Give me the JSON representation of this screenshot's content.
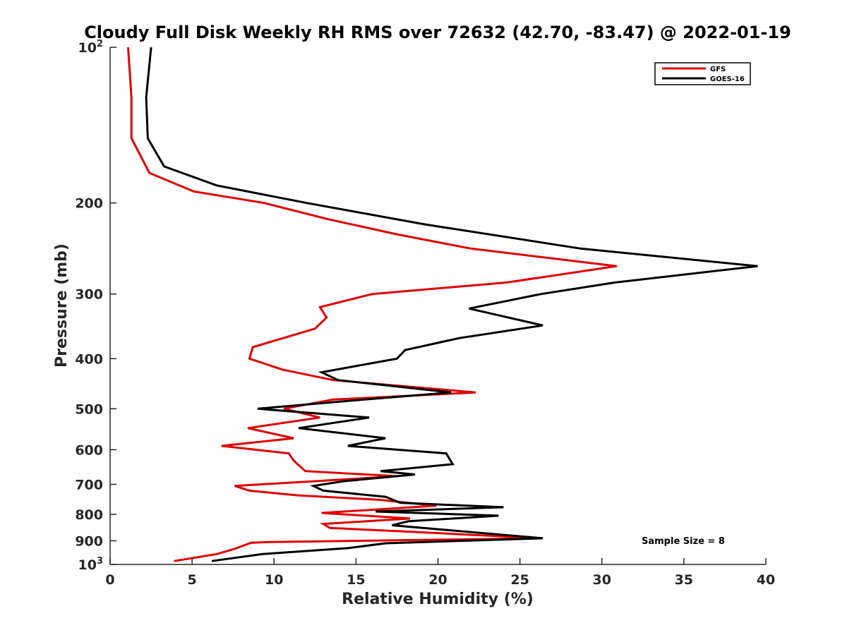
{
  "chart_data": {
    "type": "line",
    "title": "Cloudy Full Disk Weekly RH RMS over 72632 (42.70, -83.47) @ 2022-01-19",
    "xlabel": "Relative Humidity (%)",
    "ylabel": "Pressure (mb)",
    "xlim": [
      0,
      40
    ],
    "ylim": [
      100,
      1000
    ],
    "y_scale": "log",
    "y_direction": "reversed",
    "x_ticks": [
      "0",
      "5",
      "10",
      "15",
      "20",
      "25",
      "30",
      "35",
      "40"
    ],
    "y_ticks": [
      {
        "value": 100,
        "base": "10",
        "exp": "2"
      },
      {
        "value": 200,
        "label": "200"
      },
      {
        "value": 300,
        "label": "300"
      },
      {
        "value": 400,
        "label": "400"
      },
      {
        "value": 500,
        "label": "500"
      },
      {
        "value": 600,
        "label": "600"
      },
      {
        "value": 700,
        "label": "700"
      },
      {
        "value": 800,
        "label": "800"
      },
      {
        "value": 900,
        "label": "900"
      },
      {
        "value": 1000,
        "base": "10",
        "exp": "3"
      }
    ],
    "grid": false,
    "legend_position": "top-right",
    "annotation": "Sample Size = 8",
    "series": [
      {
        "name": "GFS",
        "color": "#e00000",
        "points": [
          [
            1.1,
            100
          ],
          [
            1.3,
            125
          ],
          [
            1.3,
            150
          ],
          [
            2.4,
            175
          ],
          [
            5.1,
            190
          ],
          [
            9.4,
            200
          ],
          [
            13.3,
            215
          ],
          [
            17.5,
            230
          ],
          [
            22.0,
            245
          ],
          [
            30.9,
            265
          ],
          [
            24.2,
            285
          ],
          [
            16.0,
            300
          ],
          [
            12.8,
            318
          ],
          [
            13.2,
            333
          ],
          [
            12.5,
            350
          ],
          [
            8.7,
            380
          ],
          [
            8.5,
            400
          ],
          [
            10.5,
            420
          ],
          [
            13.6,
            440
          ],
          [
            22.3,
            465
          ],
          [
            13.6,
            480
          ],
          [
            10.6,
            500
          ],
          [
            12.8,
            520
          ],
          [
            8.4,
            545
          ],
          [
            11.2,
            570
          ],
          [
            6.8,
            590
          ],
          [
            10.9,
            610
          ],
          [
            11.2,
            630
          ],
          [
            11.9,
            660
          ],
          [
            17.5,
            675
          ],
          [
            12.6,
            690
          ],
          [
            7.6,
            705
          ],
          [
            8.5,
            720
          ],
          [
            11.4,
            735
          ],
          [
            16.4,
            750
          ],
          [
            19.9,
            770
          ],
          [
            12.9,
            795
          ],
          [
            18.3,
            815
          ],
          [
            13.0,
            835
          ],
          [
            13.4,
            850
          ],
          [
            18.4,
            865
          ],
          [
            26.3,
            890
          ],
          [
            9.7,
            905
          ],
          [
            8.6,
            908
          ],
          [
            7.5,
            935
          ],
          [
            6.5,
            955
          ],
          [
            3.9,
            985
          ]
        ]
      },
      {
        "name": "GOES-16",
        "color": "#000000",
        "points": [
          [
            2.5,
            100
          ],
          [
            2.2,
            125
          ],
          [
            2.3,
            150
          ],
          [
            3.3,
            170
          ],
          [
            6.5,
            185
          ],
          [
            12.0,
            200
          ],
          [
            19.2,
            220
          ],
          [
            28.7,
            245
          ],
          [
            39.5,
            265
          ],
          [
            30.8,
            285
          ],
          [
            26.3,
            300
          ],
          [
            21.9,
            320
          ],
          [
            26.4,
            345
          ],
          [
            21.3,
            365
          ],
          [
            18.0,
            385
          ],
          [
            17.5,
            400
          ],
          [
            12.9,
            425
          ],
          [
            13.9,
            440
          ],
          [
            20.8,
            465
          ],
          [
            15.5,
            480
          ],
          [
            9.0,
            500
          ],
          [
            15.8,
            520
          ],
          [
            11.5,
            545
          ],
          [
            16.8,
            570
          ],
          [
            14.5,
            590
          ],
          [
            20.5,
            610
          ],
          [
            20.9,
            640
          ],
          [
            16.5,
            660
          ],
          [
            18.6,
            670
          ],
          [
            14.3,
            690
          ],
          [
            12.4,
            705
          ],
          [
            13.0,
            720
          ],
          [
            16.8,
            740
          ],
          [
            17.7,
            760
          ],
          [
            24.0,
            775
          ],
          [
            16.2,
            790
          ],
          [
            23.7,
            805
          ],
          [
            18.2,
            825
          ],
          [
            17.2,
            840
          ],
          [
            26.4,
            890
          ],
          [
            16.8,
            910
          ],
          [
            14.5,
            930
          ],
          [
            9.3,
            955
          ],
          [
            6.2,
            985
          ]
        ]
      }
    ]
  }
}
